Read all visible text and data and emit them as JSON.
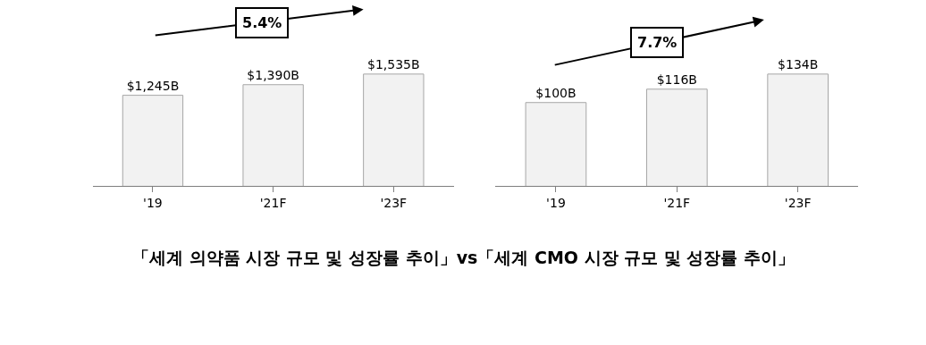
{
  "chart_data": [
    {
      "type": "bar",
      "categories": [
        "'19",
        "'21F",
        "'23F"
      ],
      "values": [
        1245,
        1390,
        1535
      ],
      "value_labels": [
        "$1,245B",
        "$1,390B",
        "$1,535B"
      ],
      "color": "#f2f2f2",
      "annotations": [
        "5.4%",
        "「세계 의약품 시장 규모 및 성장률 추이」vs「세계 CMO 시장 규모 및 성장률 추이」"
      ]
    },
    {
      "type": "bar",
      "categories": [
        "'19",
        "'21F",
        "'23F"
      ],
      "values": [
        100,
        116,
        134
      ],
      "value_labels": [
        "$100B",
        "$116B",
        "$134B"
      ],
      "color": "#f2f2f2",
      "annotations": [
        "7.7%"
      ]
    }
  ]
}
